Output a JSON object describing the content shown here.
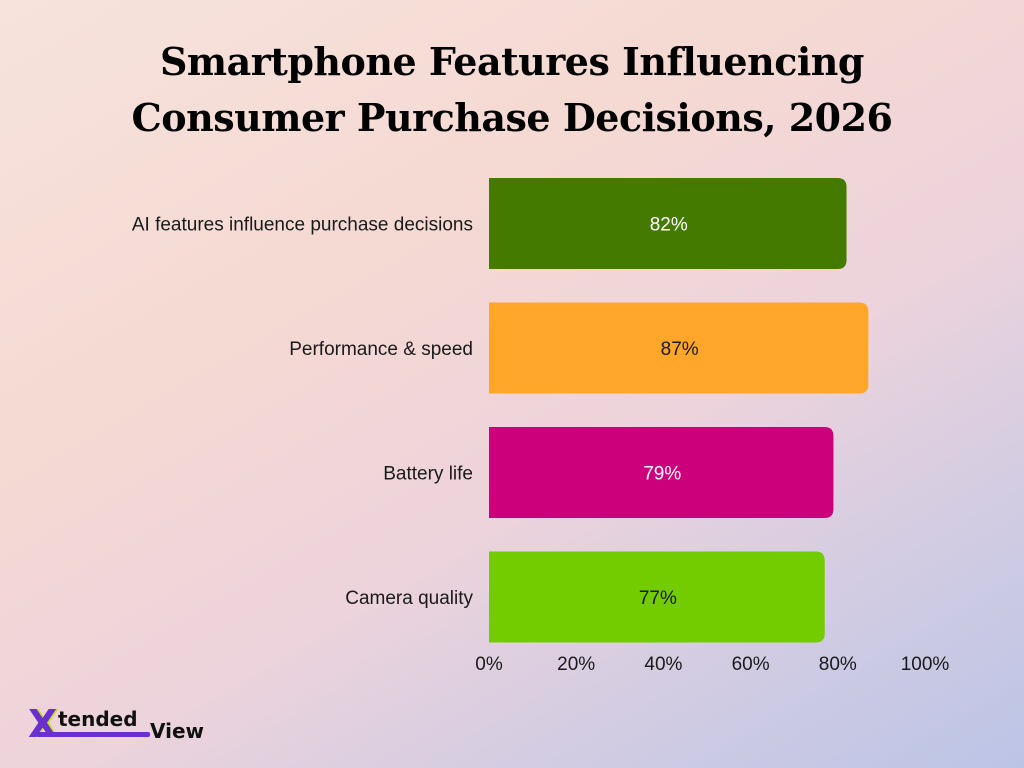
{
  "chart_data": {
    "type": "bar",
    "orientation": "horizontal",
    "title": [
      "Smartphone Features Influencing",
      "Consumer Purchase Decisions, 2026"
    ],
    "categories": [
      "AI features influence purchase decisions",
      "Performance & speed",
      "Battery life",
      "Camera quality"
    ],
    "values": [
      82,
      87,
      79,
      77
    ],
    "value_labels": [
      "82%",
      "87%",
      "79%",
      "77%"
    ],
    "bar_colors": [
      "#447a00",
      "#ffa62b",
      "#cc007a",
      "#72cc00"
    ],
    "label_colors": [
      "#ffffff",
      "#1a1a1a",
      "#ffffff",
      "#1a1a1a"
    ],
    "xlim": [
      0,
      100
    ],
    "x_ticks": [
      "0%",
      "20%",
      "40%",
      "60%",
      "80%",
      "100%"
    ],
    "grid": false,
    "legend": "none"
  },
  "logo": {
    "mark": "X",
    "text_top": "tended",
    "text_bottom": "View",
    "accent": "#6b2fd1",
    "highlight": "#c6e21b"
  }
}
